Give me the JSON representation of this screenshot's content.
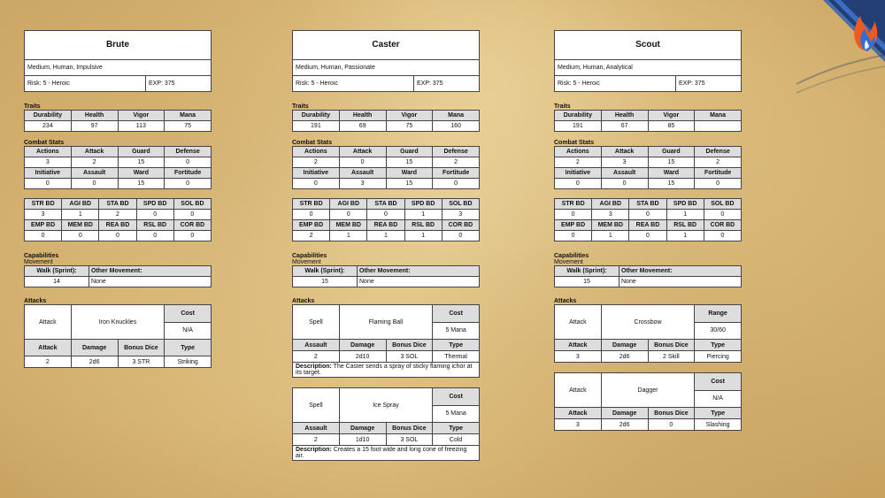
{
  "labels": {
    "traits": "Traits",
    "combat_stats": "Combat Stats",
    "capabilities": "Capabilities",
    "movement": "Movement",
    "attacks": "Attacks",
    "trait_headers": [
      "Durability",
      "Health",
      "Vigor",
      "Mana"
    ],
    "combat_headers_1": [
      "Actions",
      "Attack",
      "Guard",
      "Defense"
    ],
    "combat_headers_2": [
      "Initiative",
      "Assault",
      "Ward",
      "Fortitude"
    ],
    "bd_headers_1": [
      "STR BD",
      "AGI BD",
      "STA BD",
      "SPD BD",
      "SOL BD"
    ],
    "bd_headers_2": [
      "EMP BD",
      "MEM BD",
      "REA BD",
      "RSL BD",
      "COR BD"
    ],
    "move_headers": [
      "Walk (Sprint):",
      "Other Movement:"
    ],
    "cost": "Cost",
    "range": "Range",
    "type": "Type",
    "damage": "Damage",
    "bonus_dice": "Bonus Dice",
    "description": "Description:"
  },
  "characters": [
    {
      "name": "Brute",
      "desc": "Medium, Human, Impulsive",
      "risk": "Risk: 5 - Heroic",
      "exp": "EXP: 375",
      "traits": [
        "234",
        "97",
        "113",
        "75"
      ],
      "combat_1": [
        "3",
        "2",
        "15",
        "0"
      ],
      "combat_2": [
        "0",
        "0",
        "15",
        "0"
      ],
      "bd_1": [
        "3",
        "1",
        "2",
        "0",
        "0"
      ],
      "bd_2": [
        "0",
        "0",
        "0",
        "0",
        "0"
      ],
      "move": [
        "14",
        "None"
      ],
      "attacks": [
        {
          "kind": "Attack",
          "name": "Iron Knuckles",
          "key": "Cost",
          "key_val": "N/A",
          "row_label": "Attack",
          "row_val": "2",
          "damage": "2d6",
          "bonus": "3 STR",
          "type": "Striking"
        }
      ]
    },
    {
      "name": "Caster",
      "desc": "Medium, Human, Passionate",
      "risk": "Risk: 5 - Heroic",
      "exp": "EXP: 375",
      "traits": [
        "191",
        "69",
        "75",
        "160"
      ],
      "combat_1": [
        "2",
        "0",
        "15",
        "2"
      ],
      "combat_2": [
        "0",
        "3",
        "15",
        "0"
      ],
      "bd_1": [
        "0",
        "0",
        "0",
        "1",
        "3"
      ],
      "bd_2": [
        "2",
        "1",
        "1",
        "1",
        "0"
      ],
      "move": [
        "15",
        "None"
      ],
      "attacks": [
        {
          "kind": "Spell",
          "name": "Flaming Ball",
          "key": "Cost",
          "key_val": "5 Mana",
          "row_label": "Assault",
          "row_val": "2",
          "damage": "2d10",
          "bonus": "3 SOL",
          "type": "Thermal",
          "description": "The Caster sends a spray of sticky flaming ichor at its target."
        },
        {
          "kind": "Spell",
          "name": "Ice Spray",
          "key": "Cost",
          "key_val": "5 Mana",
          "row_label": "Assault",
          "row_val": "2",
          "damage": "1d10",
          "bonus": "3 SOL",
          "type": "Cold",
          "description": "Creates a 15 foot wide and long cone of freezing air."
        }
      ]
    },
    {
      "name": "Scout",
      "desc": "Medium, Human, Analytical",
      "risk": "Risk: 5 - Heroic",
      "exp": "EXP: 375",
      "traits": [
        "191",
        "67",
        "85",
        ""
      ],
      "combat_1": [
        "2",
        "3",
        "15",
        "2"
      ],
      "combat_2": [
        "0",
        "0",
        "15",
        "0"
      ],
      "bd_1": [
        "0",
        "3",
        "0",
        "1",
        "0"
      ],
      "bd_2": [
        "0",
        "1",
        "0",
        "1",
        "0"
      ],
      "move": [
        "15",
        "None"
      ],
      "attacks": [
        {
          "kind": "Attack",
          "name": "Crossbow",
          "key": "Range",
          "key_val": "30/60",
          "row_label": "Attack",
          "row_val": "3",
          "damage": "2d6",
          "bonus": "2 Skill",
          "type": "Piercing"
        },
        {
          "kind": "Attack",
          "name": "Dagger",
          "key": "Cost",
          "key_val": "N/A",
          "row_label": "Attack",
          "row_val": "3",
          "damage": "2d6",
          "bonus": "0",
          "type": "Slashing"
        }
      ]
    }
  ],
  "logo": {
    "icon": "fire-ice-flame-icon",
    "colors": {
      "frame": "#1c3a66",
      "flame_orange": "#f05a1e",
      "flame_blue": "#2f6fd6"
    }
  }
}
